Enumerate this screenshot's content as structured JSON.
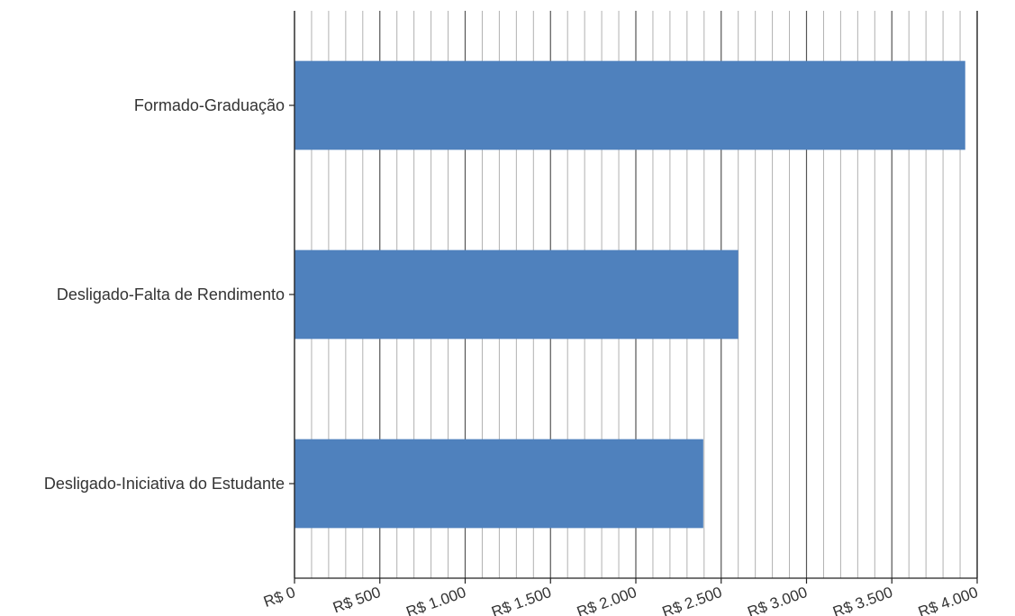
{
  "chart_data": {
    "type": "bar",
    "orientation": "horizontal",
    "title": "",
    "xlabel": "",
    "ylabel": "",
    "categories": [
      "Formado-Graduação",
      "Desligado-Falta de Rendimento",
      "Desligado-Iniciativa do Estudante"
    ],
    "values": [
      3930,
      2600,
      2395
    ],
    "xlim": [
      0,
      4000
    ],
    "x_major_ticks": [
      0,
      500,
      1000,
      1500,
      2000,
      2500,
      3000,
      3500,
      4000
    ],
    "x_tick_labels": [
      "R$ 0",
      "R$ 500",
      "R$ 1.000",
      "R$ 1.500",
      "R$ 2.000",
      "R$ 2.500",
      "R$ 3.000",
      "R$ 3.500",
      "R$ 4.000"
    ],
    "x_minor_step": 100,
    "grid": true,
    "legend": "none",
    "colors": {
      "bar": "#4f81bd",
      "major_grid": "#555555",
      "minor_grid": "#b0b0b0",
      "axis": "#222222",
      "text": "#333333"
    }
  }
}
